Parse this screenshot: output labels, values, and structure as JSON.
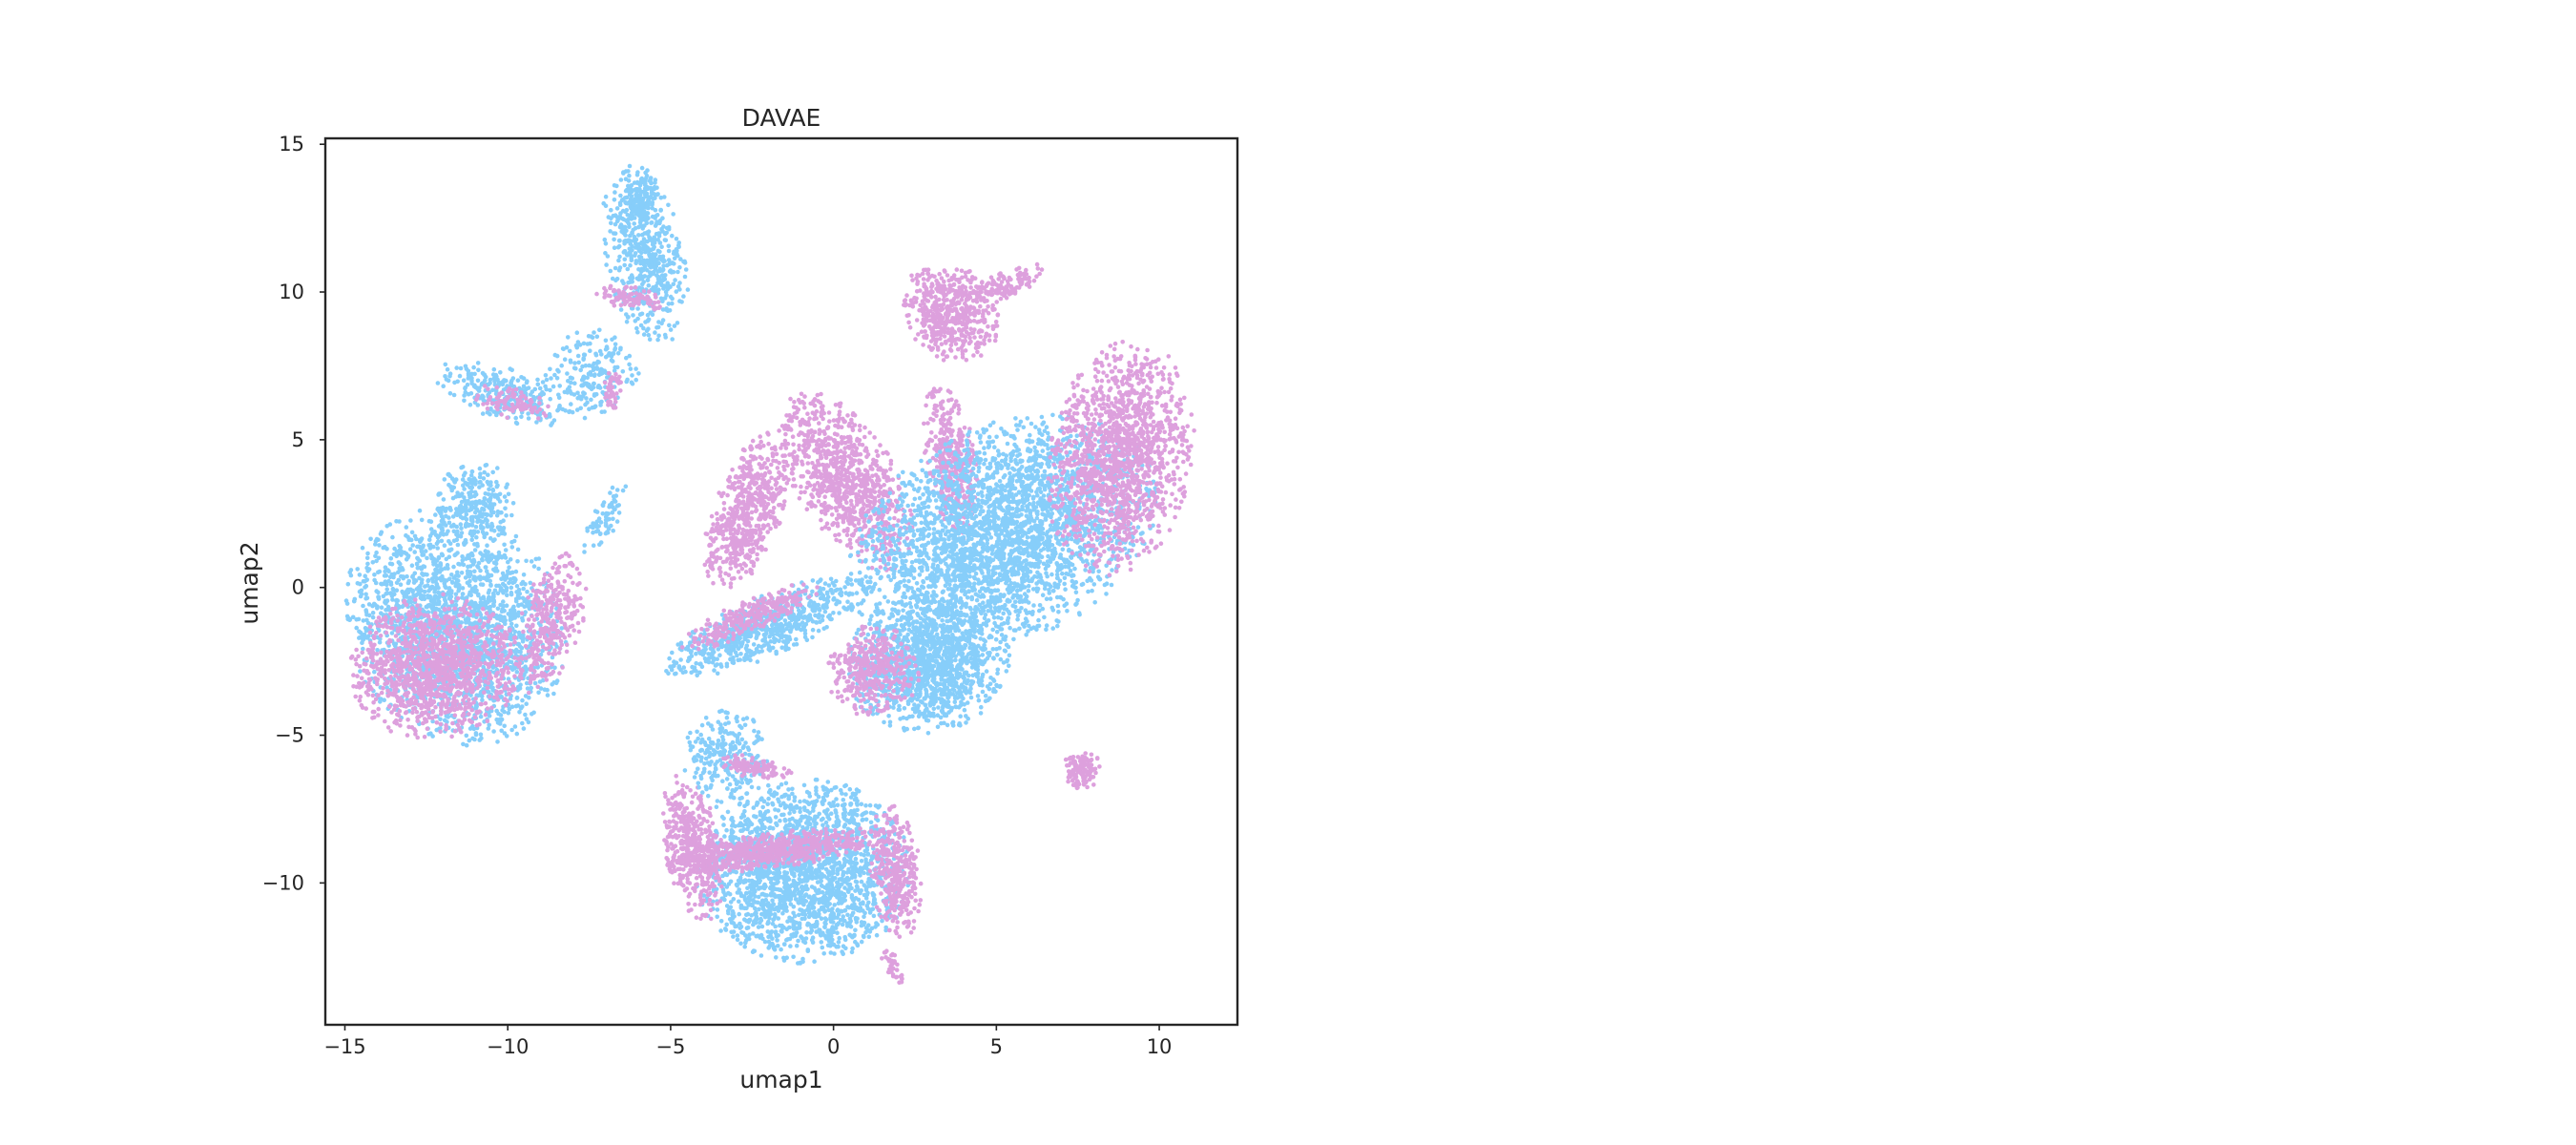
{
  "chart_data": {
    "type": "scatter",
    "title": "DAVAE",
    "xlabel": "umap1",
    "ylabel": "umap2",
    "xlim": [
      -15.6,
      12.4
    ],
    "ylim": [
      -14.8,
      15.2
    ],
    "xticks": [
      {
        "value": -15,
        "label": "−15"
      },
      {
        "value": -10,
        "label": "−10"
      },
      {
        "value": -5,
        "label": "−5"
      },
      {
        "value": 0,
        "label": "0"
      },
      {
        "value": 5,
        "label": "5"
      },
      {
        "value": 10,
        "label": "10"
      }
    ],
    "yticks": [
      {
        "value": 15,
        "label": "15"
      },
      {
        "value": 10,
        "label": "10"
      },
      {
        "value": 5,
        "label": "5"
      },
      {
        "value": 0,
        "label": "0"
      },
      {
        "value": -5,
        "label": "−5"
      },
      {
        "value": -10,
        "label": "−10"
      }
    ],
    "grid": false,
    "legend": "none",
    "series": [
      {
        "color": "#87cefa"
      },
      {
        "color": "#dda0dd"
      }
    ],
    "clusters": [
      {
        "name": "top-spike",
        "cx": -5.8,
        "cy": 11.2,
        "rx": 1.1,
        "ry": 2.8,
        "rot": 10,
        "n": 520,
        "series": 0
      },
      {
        "name": "top-spike-tip",
        "cx": -5.9,
        "cy": 13.2,
        "rx": 0.6,
        "ry": 0.9,
        "rot": 0,
        "n": 160,
        "series": 0
      },
      {
        "name": "top-loop-pink",
        "cx": -6.2,
        "cy": 9.8,
        "rx": 1.0,
        "ry": 0.35,
        "rot": -10,
        "n": 90,
        "series": 1
      },
      {
        "name": "upper-left-wing",
        "cx": -10.2,
        "cy": 6.6,
        "rx": 2.0,
        "ry": 0.8,
        "rot": -20,
        "n": 260,
        "series": 0
      },
      {
        "name": "upper-left-wing-pink",
        "cx": -9.8,
        "cy": 6.2,
        "rx": 1.2,
        "ry": 0.5,
        "rot": -20,
        "n": 90,
        "series": 1
      },
      {
        "name": "upper-mid-blob",
        "cx": -7.4,
        "cy": 7.2,
        "rx": 1.3,
        "ry": 1.4,
        "rot": 0,
        "n": 200,
        "series": 0
      },
      {
        "name": "small-pink-stub",
        "cx": -6.8,
        "cy": 6.6,
        "rx": 0.3,
        "ry": 0.7,
        "rot": 0,
        "n": 50,
        "series": 1
      },
      {
        "name": "left-lobe",
        "cx": -11.6,
        "cy": -1.3,
        "rx": 3.0,
        "ry": 3.7,
        "rot": 20,
        "n": 2100,
        "series": 0
      },
      {
        "name": "left-lobe-pink",
        "cx": -12.2,
        "cy": -2.7,
        "rx": 2.4,
        "ry": 2.2,
        "rot": 15,
        "n": 1200,
        "series": 1
      },
      {
        "name": "left-lobe-tail-pink",
        "cx": -8.7,
        "cy": -1.2,
        "rx": 0.9,
        "ry": 2.2,
        "rot": -15,
        "n": 320,
        "series": 1
      },
      {
        "name": "left-lobe-top",
        "cx": -11.0,
        "cy": 2.8,
        "rx": 1.2,
        "ry": 1.3,
        "rot": 0,
        "n": 260,
        "series": 0
      },
      {
        "name": "mid-streak",
        "cx": -7.0,
        "cy": 2.3,
        "rx": 0.45,
        "ry": 1.2,
        "rot": -25,
        "n": 70,
        "series": 0
      },
      {
        "name": "center-lower-band",
        "cx": -2.0,
        "cy": -1.3,
        "rx": 3.2,
        "ry": 0.9,
        "rot": 25,
        "n": 700,
        "series": 0
      },
      {
        "name": "center-lower-band-pink",
        "cx": -2.6,
        "cy": -1.0,
        "rx": 2.2,
        "ry": 0.5,
        "rot": 25,
        "n": 260,
        "series": 1
      },
      {
        "name": "pink-crescent-left",
        "cx": -2.6,
        "cy": 2.6,
        "rx": 1.0,
        "ry": 2.6,
        "rot": -18,
        "n": 600,
        "series": 1
      },
      {
        "name": "pink-crescent-mid",
        "cx": 0.4,
        "cy": 3.6,
        "rx": 1.4,
        "ry": 3.0,
        "rot": 28,
        "n": 900,
        "series": 1
      },
      {
        "name": "pink-arc-right",
        "cx": 3.6,
        "cy": 4.3,
        "rx": 0.7,
        "ry": 2.4,
        "rot": 8,
        "n": 380,
        "series": 1
      },
      {
        "name": "pink-top-drop",
        "cx": 3.6,
        "cy": 9.3,
        "rx": 1.3,
        "ry": 1.6,
        "rot": 25,
        "n": 520,
        "series": 1
      },
      {
        "name": "pink-top-drop-tail",
        "cx": 5.3,
        "cy": 10.3,
        "rx": 1.2,
        "ry": 0.45,
        "rot": 20,
        "n": 120,
        "series": 1
      },
      {
        "name": "big-right-lobe-blue",
        "cx": 5.2,
        "cy": 1.8,
        "rx": 4.6,
        "ry": 3.2,
        "rot": 32,
        "n": 3000,
        "series": 0
      },
      {
        "name": "big-right-lobe-pink-edge",
        "cx": 8.8,
        "cy": 4.4,
        "rx": 2.0,
        "ry": 3.6,
        "rot": -8,
        "n": 1400,
        "series": 1
      },
      {
        "name": "right-lobe-lower",
        "cx": 2.9,
        "cy": -2.6,
        "rx": 2.3,
        "ry": 2.1,
        "rot": 20,
        "n": 1300,
        "series": 0
      },
      {
        "name": "right-lobe-lower-pink",
        "cx": 1.2,
        "cy": -2.8,
        "rx": 1.3,
        "ry": 1.4,
        "rot": 0,
        "n": 380,
        "series": 1
      },
      {
        "name": "bottom-lobe",
        "cx": -0.9,
        "cy": -9.6,
        "rx": 3.0,
        "ry": 2.8,
        "rot": 5,
        "n": 2100,
        "series": 0
      },
      {
        "name": "bottom-lobe-pink-top",
        "cx": -1.8,
        "cy": -8.9,
        "rx": 3.0,
        "ry": 0.55,
        "rot": 8,
        "n": 650,
        "series": 1
      },
      {
        "name": "bottom-lobe-pink-left",
        "cx": -4.3,
        "cy": -8.8,
        "rx": 0.8,
        "ry": 2.3,
        "rot": 10,
        "n": 420,
        "series": 1
      },
      {
        "name": "bottom-lobe-pink-right",
        "cx": 1.9,
        "cy": -9.6,
        "rx": 0.7,
        "ry": 2.1,
        "rot": 5,
        "n": 360,
        "series": 1
      },
      {
        "name": "bottom-lobe-upper-blue",
        "cx": -3.3,
        "cy": -5.8,
        "rx": 1.2,
        "ry": 1.5,
        "rot": 0,
        "n": 260,
        "series": 0
      },
      {
        "name": "bottom-lobe-upper-pink",
        "cx": -2.5,
        "cy": -6.1,
        "rx": 1.1,
        "ry": 0.35,
        "rot": -10,
        "n": 110,
        "series": 1
      },
      {
        "name": "bottom-tail",
        "cx": 1.8,
        "cy": -12.8,
        "rx": 0.25,
        "ry": 0.6,
        "rot": 30,
        "n": 40,
        "series": 1
      },
      {
        "name": "isolated-pink-island",
        "cx": 7.6,
        "cy": -6.2,
        "rx": 0.6,
        "ry": 0.55,
        "rot": 20,
        "n": 120,
        "series": 1
      }
    ]
  }
}
